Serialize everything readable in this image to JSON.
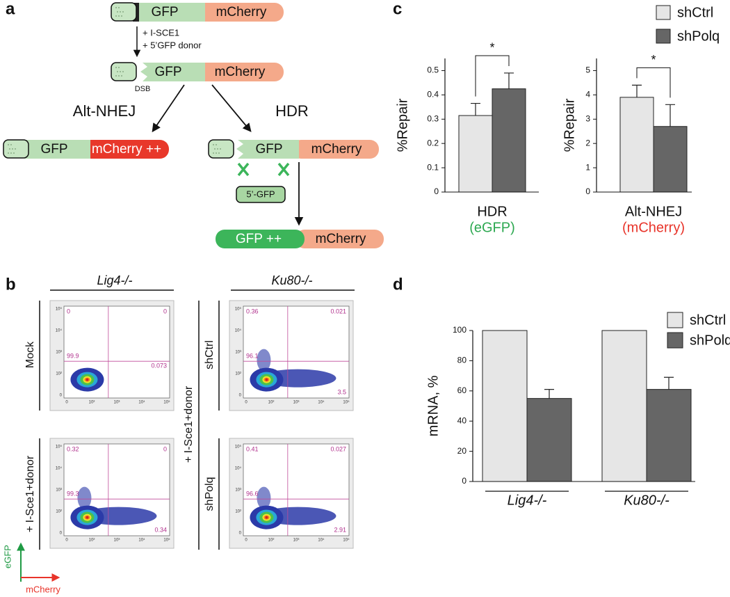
{
  "panel_labels": [
    "a",
    "b",
    "c",
    "d"
  ],
  "diagram": {
    "labels": [
      "GFP",
      "mCherry",
      "+ I-SCE1",
      "+ 5’GFP donor",
      "GFP",
      "mCherry",
      "DSB",
      "Alt-NHEJ",
      "HDR",
      "GFP",
      "mCherry ++",
      "GFP",
      "mCherry",
      "5’-GFP",
      "GFP ++",
      "mCherry"
    ]
  },
  "flow": {
    "columns": [
      "Lig4-/-",
      "Ku80-/-"
    ],
    "row_labels": [
      "Mock",
      "+ I-Sce1+donor",
      "shCtrl",
      "shPolq",
      "+ I-Sce1+donor"
    ],
    "tick_labels": [
      "0",
      "10²",
      "10³",
      "10⁴",
      "10⁵"
    ],
    "plots": [
      {
        "quadrants": [
          0,
          0,
          99.9,
          0.073
        ]
      },
      {
        "quadrants": [
          0.32,
          0,
          99.3,
          0.34
        ]
      },
      {
        "quadrants": [
          0.36,
          0.021,
          96.1,
          3.5
        ]
      },
      {
        "quadrants": [
          0.41,
          0.027,
          96.6,
          2.91
        ]
      }
    ],
    "y_axis_label": "eGFP",
    "x_axis_label": "mCherry"
  },
  "chart_data": [
    {
      "type": "bar",
      "ylabel": "%Repair",
      "categories": [
        "HDR"
      ],
      "category_sublabels": [
        "(eGFP)"
      ],
      "sublabel_color": "#2ca850",
      "series": [
        {
          "name": "shCtrl",
          "color": "#e6e6e6",
          "values": [
            0.315
          ],
          "errors": [
            0.05
          ]
        },
        {
          "name": "shPolq",
          "color": "#666666",
          "values": [
            0.425
          ],
          "errors": [
            0.065
          ]
        }
      ],
      "ylim": [
        0,
        0.55
      ],
      "yticks": [
        0,
        0.1,
        0.2,
        0.3,
        0.4,
        0.5
      ],
      "significance": "*",
      "legend": "top-right"
    },
    {
      "type": "bar",
      "ylabel": "%Repair",
      "categories": [
        "Alt-NHEJ"
      ],
      "category_sublabels": [
        "(mCherry)"
      ],
      "sublabel_color": "#e8342a",
      "series": [
        {
          "name": "shCtrl",
          "color": "#e6e6e6",
          "values": [
            3.9
          ],
          "errors": [
            0.5
          ]
        },
        {
          "name": "shPolq",
          "color": "#666666",
          "values": [
            2.7
          ],
          "errors": [
            0.9
          ]
        }
      ],
      "ylim": [
        0,
        5.5
      ],
      "yticks": [
        0,
        1,
        2,
        3,
        4,
        5
      ],
      "significance": "*",
      "legend": false
    },
    {
      "type": "bar",
      "ylabel": "mRNA, %",
      "categories": [
        "Lig4-/-",
        "Ku80-/-"
      ],
      "series": [
        {
          "name": "shCtrl",
          "color": "#e6e6e6",
          "values": [
            100,
            100
          ]
        },
        {
          "name": "shPolq",
          "color": "#666666",
          "values": [
            55,
            61
          ],
          "errors": [
            6,
            8
          ]
        }
      ],
      "ylim": [
        0,
        100
      ],
      "yticks": [
        0,
        20,
        40,
        60,
        80,
        100
      ],
      "legend": "top-right"
    }
  ]
}
